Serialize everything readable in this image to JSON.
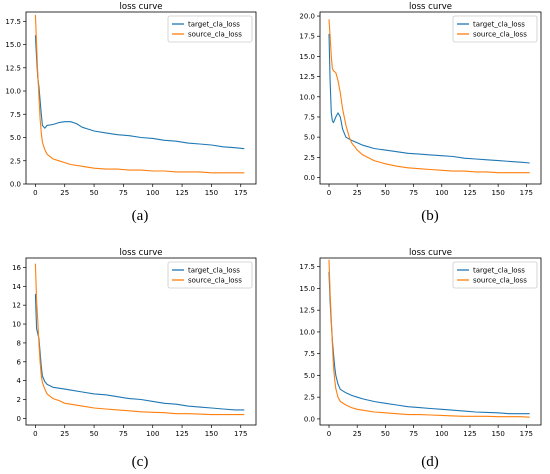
{
  "colors": {
    "target": "#1f77b4",
    "source": "#ff7f0e"
  },
  "chart_data": [
    {
      "type": "line",
      "title": "loss curve",
      "caption": "(a)",
      "xlim": [
        -8,
        188
      ],
      "ylim": [
        0,
        18.5
      ],
      "xticks": [
        0,
        25,
        50,
        75,
        100,
        125,
        150,
        175
      ],
      "yticks": [
        0.0,
        2.5,
        5.0,
        7.5,
        10.0,
        12.5,
        15.0,
        17.5
      ],
      "ytick_labels": [
        "0.0",
        "2.5",
        "5.0",
        "7.5",
        "10.0",
        "12.5",
        "15.0",
        "17.5"
      ],
      "legend": "top-right",
      "series": [
        {
          "name": "target_cla_loss",
          "color_key": "target",
          "x": [
            0,
            1,
            2,
            3,
            4,
            5,
            6,
            8,
            10,
            15,
            20,
            25,
            30,
            35,
            40,
            45,
            50,
            60,
            70,
            80,
            90,
            100,
            110,
            120,
            130,
            140,
            150,
            160,
            170,
            178
          ],
          "y": [
            16.0,
            13.5,
            11.5,
            10.5,
            9.0,
            7.5,
            6.3,
            6.0,
            6.3,
            6.4,
            6.6,
            6.7,
            6.7,
            6.5,
            6.1,
            5.9,
            5.7,
            5.5,
            5.3,
            5.2,
            5.0,
            4.9,
            4.7,
            4.6,
            4.4,
            4.3,
            4.2,
            4.0,
            3.9,
            3.8
          ]
        },
        {
          "name": "source_cla_loss",
          "color_key": "source",
          "x": [
            0,
            1,
            2,
            3,
            4,
            5,
            6,
            8,
            10,
            15,
            20,
            25,
            30,
            40,
            50,
            60,
            70,
            80,
            90,
            100,
            110,
            120,
            130,
            140,
            150,
            160,
            170,
            178
          ],
          "y": [
            18.2,
            15.0,
            12.0,
            9.5,
            7.0,
            5.5,
            4.5,
            3.7,
            3.2,
            2.7,
            2.5,
            2.3,
            2.1,
            1.9,
            1.7,
            1.6,
            1.6,
            1.5,
            1.5,
            1.4,
            1.4,
            1.3,
            1.3,
            1.3,
            1.2,
            1.2,
            1.2,
            1.2
          ]
        }
      ]
    },
    {
      "type": "line",
      "title": "loss curve",
      "caption": "(b)",
      "xlim": [
        -8,
        188
      ],
      "ylim": [
        -0.8,
        20.5
      ],
      "xticks": [
        0,
        25,
        50,
        75,
        100,
        125,
        150,
        175
      ],
      "yticks": [
        0.0,
        2.5,
        5.0,
        7.5,
        10.0,
        12.5,
        15.0,
        17.5,
        20.0
      ],
      "ytick_labels": [
        "0.0",
        "2.5",
        "5.0",
        "7.5",
        "10.0",
        "12.5",
        "15.0",
        "17.5",
        "20.0"
      ],
      "legend": "top-right",
      "series": [
        {
          "name": "target_cla_loss",
          "color_key": "target",
          "x": [
            0,
            1,
            2,
            3,
            4,
            6,
            8,
            10,
            12,
            15,
            20,
            25,
            30,
            40,
            50,
            60,
            70,
            80,
            90,
            100,
            110,
            120,
            130,
            140,
            150,
            160,
            170,
            178
          ],
          "y": [
            17.8,
            12.0,
            8.0,
            7.0,
            6.8,
            7.5,
            8.0,
            7.5,
            6.0,
            5.0,
            4.6,
            4.3,
            4.0,
            3.6,
            3.4,
            3.2,
            3.0,
            2.9,
            2.8,
            2.7,
            2.6,
            2.4,
            2.3,
            2.2,
            2.1,
            2.0,
            1.9,
            1.8
          ]
        },
        {
          "name": "source_cla_loss",
          "color_key": "source",
          "x": [
            0,
            1,
            2,
            3,
            4,
            6,
            8,
            10,
            12,
            15,
            18,
            20,
            25,
            30,
            40,
            50,
            60,
            70,
            80,
            90,
            100,
            110,
            120,
            130,
            140,
            150,
            160,
            170,
            178
          ],
          "y": [
            19.6,
            17.5,
            15.0,
            13.5,
            13.2,
            13.0,
            12.0,
            10.5,
            8.5,
            6.5,
            5.0,
            4.3,
            3.4,
            2.8,
            2.1,
            1.7,
            1.4,
            1.2,
            1.1,
            1.0,
            0.9,
            0.8,
            0.8,
            0.7,
            0.7,
            0.6,
            0.6,
            0.6,
            0.6
          ]
        }
      ]
    },
    {
      "type": "line",
      "title": "loss curve",
      "caption": "(c)",
      "xlim": [
        -8,
        188
      ],
      "ylim": [
        -0.7,
        17.0
      ],
      "xticks": [
        0,
        25,
        50,
        75,
        100,
        125,
        150,
        175
      ],
      "yticks": [
        0,
        2,
        4,
        6,
        8,
        10,
        12,
        14,
        16
      ],
      "ytick_labels": [
        "0",
        "2",
        "4",
        "6",
        "8",
        "10",
        "12",
        "14",
        "16"
      ],
      "legend": "top-right",
      "series": [
        {
          "name": "target_cla_loss",
          "color_key": "target",
          "x": [
            0,
            1,
            2,
            3,
            4,
            5,
            6,
            8,
            10,
            15,
            20,
            25,
            30,
            40,
            50,
            60,
            70,
            80,
            90,
            100,
            110,
            120,
            130,
            140,
            150,
            160,
            170,
            178
          ],
          "y": [
            13.2,
            9.5,
            9.0,
            8.5,
            7.0,
            5.5,
            4.5,
            3.9,
            3.6,
            3.3,
            3.2,
            3.1,
            3.0,
            2.8,
            2.6,
            2.5,
            2.3,
            2.1,
            2.0,
            1.8,
            1.6,
            1.5,
            1.3,
            1.2,
            1.1,
            1.0,
            0.9,
            0.9
          ]
        },
        {
          "name": "source_cla_loss",
          "color_key": "source",
          "x": [
            0,
            1,
            2,
            3,
            4,
            5,
            6,
            8,
            10,
            15,
            20,
            25,
            30,
            40,
            50,
            60,
            70,
            80,
            90,
            100,
            110,
            120,
            130,
            140,
            150,
            160,
            170,
            178
          ],
          "y": [
            16.4,
            12.5,
            10.5,
            8.0,
            6.0,
            4.5,
            3.8,
            3.1,
            2.6,
            2.1,
            1.9,
            1.6,
            1.5,
            1.3,
            1.1,
            1.0,
            0.9,
            0.8,
            0.7,
            0.65,
            0.6,
            0.5,
            0.5,
            0.45,
            0.4,
            0.4,
            0.4,
            0.4
          ]
        }
      ]
    },
    {
      "type": "line",
      "title": "loss curve",
      "caption": "(d)",
      "xlim": [
        -8,
        188
      ],
      "ylim": [
        -0.7,
        18.5
      ],
      "xticks": [
        0,
        25,
        50,
        75,
        100,
        125,
        150,
        175
      ],
      "yticks": [
        0.0,
        2.5,
        5.0,
        7.5,
        10.0,
        12.5,
        15.0,
        17.5
      ],
      "ytick_labels": [
        "0.0",
        "2.5",
        "5.0",
        "7.5",
        "10.0",
        "12.5",
        "15.0",
        "17.5"
      ],
      "legend": "top-right",
      "series": [
        {
          "name": "target_cla_loss",
          "color_key": "target",
          "x": [
            0,
            1,
            2,
            3,
            4,
            5,
            6,
            8,
            10,
            15,
            20,
            25,
            30,
            40,
            50,
            60,
            70,
            80,
            90,
            100,
            110,
            120,
            130,
            140,
            150,
            160,
            170,
            178
          ],
          "y": [
            16.9,
            13.5,
            11.0,
            9.0,
            7.5,
            6.0,
            5.0,
            4.0,
            3.4,
            3.0,
            2.7,
            2.5,
            2.3,
            2.0,
            1.8,
            1.6,
            1.4,
            1.3,
            1.2,
            1.1,
            1.0,
            0.9,
            0.8,
            0.75,
            0.7,
            0.6,
            0.6,
            0.6
          ]
        },
        {
          "name": "source_cla_loss",
          "color_key": "source",
          "x": [
            0,
            1,
            2,
            3,
            4,
            5,
            6,
            8,
            10,
            15,
            20,
            25,
            30,
            40,
            50,
            60,
            70,
            80,
            90,
            100,
            110,
            120,
            130,
            140,
            150,
            160,
            170,
            178
          ],
          "y": [
            18.3,
            14.5,
            11.5,
            8.5,
            6.0,
            4.5,
            3.5,
            2.5,
            2.0,
            1.6,
            1.3,
            1.1,
            1.0,
            0.8,
            0.7,
            0.6,
            0.5,
            0.5,
            0.45,
            0.4,
            0.35,
            0.3,
            0.3,
            0.3,
            0.25,
            0.25,
            0.25,
            0.2
          ]
        }
      ]
    }
  ]
}
